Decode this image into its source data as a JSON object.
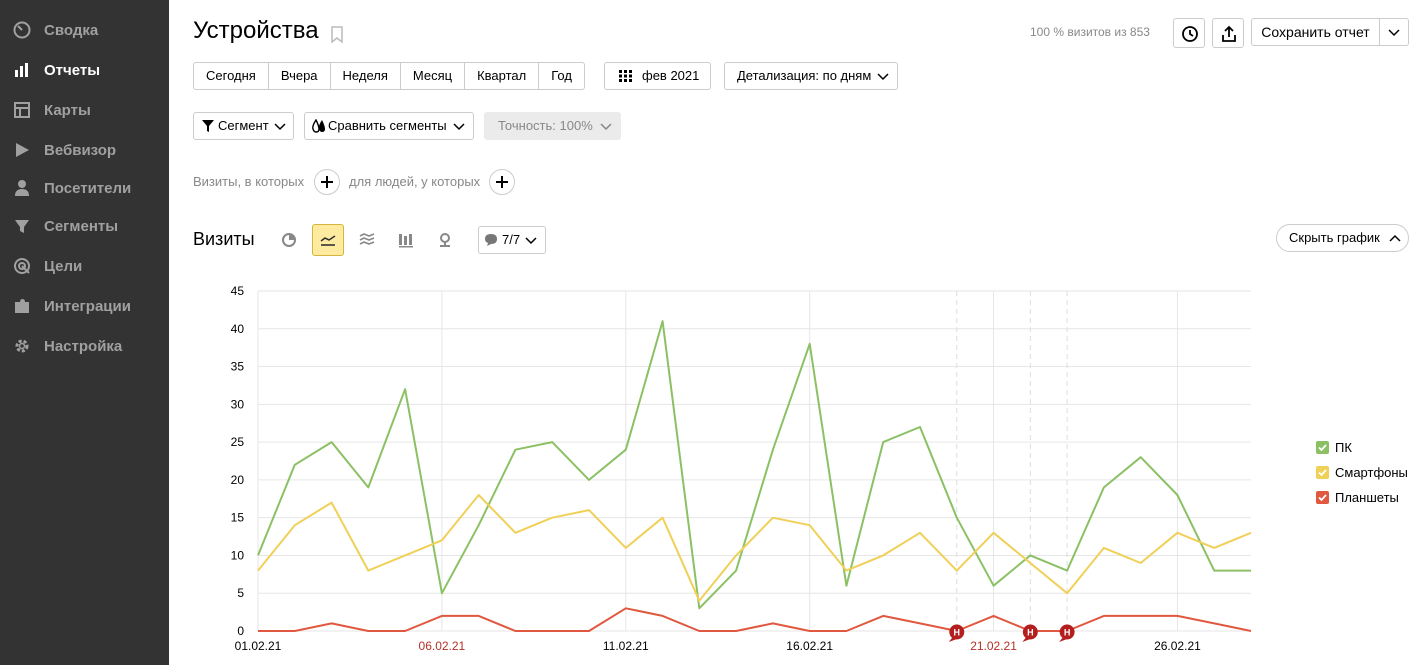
{
  "sidebar": {
    "items": [
      {
        "label": "Сводка",
        "icon": "dashboard-icon",
        "active": false
      },
      {
        "label": "Отчеты",
        "icon": "bar-chart-icon",
        "active": true
      },
      {
        "label": "Карты",
        "icon": "map-grid-icon",
        "active": false
      },
      {
        "label": "Вебвизор",
        "icon": "play-icon",
        "active": false
      },
      {
        "label": "Посетители",
        "icon": "person-icon",
        "active": false
      },
      {
        "label": "Сегменты",
        "icon": "funnel-icon",
        "active": false
      },
      {
        "label": "Цели",
        "icon": "target-icon",
        "active": false
      },
      {
        "label": "Интеграции",
        "icon": "puzzle-icon",
        "active": false
      },
      {
        "label": "Настройка",
        "icon": "gear-icon",
        "active": false
      }
    ]
  },
  "header": {
    "title": "Устройства",
    "visits_note": "100 % визитов из 853",
    "save_label": "Сохранить отчет"
  },
  "toolbar": {
    "periods": [
      "Сегодня",
      "Вчера",
      "Неделя",
      "Месяц",
      "Квартал",
      "Год"
    ],
    "date_label": "фев 2021",
    "detail_label": "Детализация: по дням",
    "segment_label": "Сегмент",
    "compare_label": "Сравнить сегменты",
    "accuracy_label": "Точность: 100%"
  },
  "filters": {
    "visits_text": "Визиты, в которых",
    "people_text": "для людей, у которых"
  },
  "chart_section": {
    "title": "Визиты",
    "annotations_count": "7/7",
    "hide_chart_label": "Скрыть график"
  },
  "chart_data": {
    "type": "line",
    "x": [
      "01.02.21",
      "02.02.21",
      "03.02.21",
      "04.02.21",
      "05.02.21",
      "06.02.21",
      "07.02.21",
      "08.02.21",
      "09.02.21",
      "10.02.21",
      "11.02.21",
      "12.02.21",
      "13.02.21",
      "14.02.21",
      "15.02.21",
      "16.02.21",
      "17.02.21",
      "18.02.21",
      "19.02.21",
      "20.02.21",
      "21.02.21",
      "22.02.21",
      "23.02.21",
      "24.02.21",
      "25.02.21",
      "26.02.21",
      "27.02.21",
      "28.02.21"
    ],
    "x_tick_labels": [
      "01.02.21",
      "06.02.21",
      "11.02.21",
      "16.02.21",
      "21.02.21",
      "26.02.21"
    ],
    "holiday_ticks": [
      "06.02.21",
      "21.02.21"
    ],
    "y_ticks": [
      0,
      5,
      10,
      15,
      20,
      25,
      30,
      35,
      40,
      45
    ],
    "ylim": [
      0,
      45
    ],
    "grid": true,
    "legend_position": "right",
    "series": [
      {
        "name": "ПК",
        "color": "#8bc064",
        "values": [
          10,
          22,
          25,
          19,
          32,
          5,
          14,
          24,
          25,
          20,
          24,
          41,
          3,
          8,
          24,
          38,
          6,
          25,
          27,
          15,
          6,
          10,
          8,
          19,
          23,
          18,
          8,
          8
        ]
      },
      {
        "name": "Смартфоны",
        "color": "#f0d058",
        "values": [
          8,
          14,
          17,
          8,
          10,
          12,
          18,
          13,
          15,
          16,
          11,
          15,
          4,
          10,
          15,
          14,
          8,
          10,
          13,
          8,
          13,
          9,
          5,
          11,
          9,
          13,
          11,
          13
        ]
      },
      {
        "name": "Планшеты",
        "color": "#e0583f",
        "values": [
          0,
          0,
          1,
          0,
          0,
          2,
          2,
          0,
          0,
          0,
          3,
          2,
          0,
          0,
          1,
          0,
          0,
          2,
          1,
          0,
          2,
          0,
          0,
          2,
          2,
          2,
          1,
          0
        ]
      }
    ],
    "markers": [
      {
        "x": "20.02.21",
        "label": "Н"
      },
      {
        "x": "22.02.21",
        "label": "Н"
      },
      {
        "x": "23.02.21",
        "label": "Н"
      }
    ]
  }
}
